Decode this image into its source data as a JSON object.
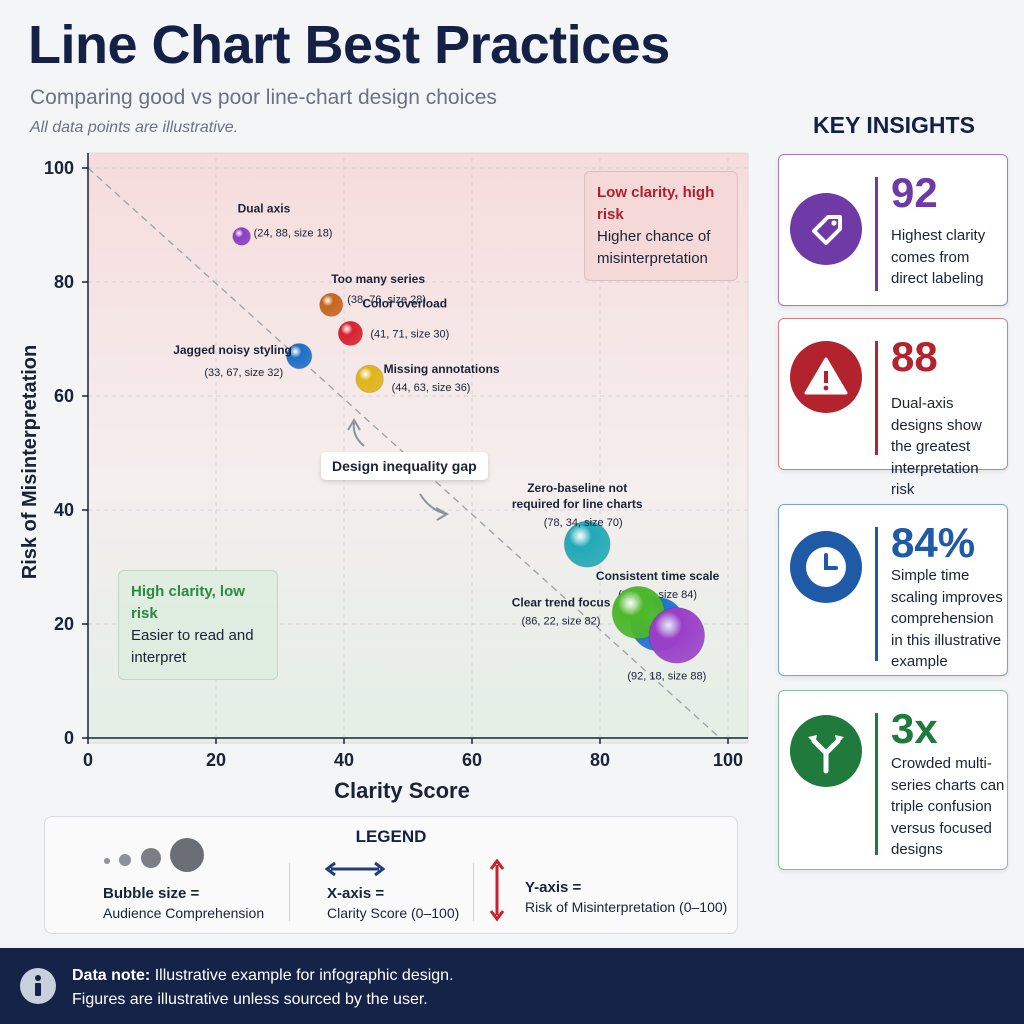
{
  "header": {
    "title": "Line Chart Best Practices",
    "subtitle": "Comparing good vs poor line-chart design choices",
    "note": "All data points are illustrative."
  },
  "chart_data": {
    "type": "scatter",
    "xlabel": "Clarity Score",
    "ylabel": "Risk of Misinterpretation",
    "xlim": [
      0,
      100
    ],
    "ylim": [
      0,
      100
    ],
    "xticks": [
      0,
      20,
      40,
      60,
      80,
      100
    ],
    "yticks": [
      0,
      20,
      40,
      60,
      80,
      100
    ],
    "grid": true,
    "points": [
      {
        "label": "Dual axis",
        "coords": "(24, 88, size 18)",
        "x": 24,
        "y": 88,
        "size": 18,
        "color": "#8b3fc4"
      },
      {
        "label": "Too many series",
        "coords": "(38, 76, size 28)",
        "x": 38,
        "y": 76,
        "size": 28,
        "color": "#c8641e"
      },
      {
        "label": "Color overload",
        "coords": "(41, 71, size 30)",
        "x": 41,
        "y": 71,
        "size": 30,
        "color": "#d92030"
      },
      {
        "label": "Jagged noisy styling",
        "coords": "(33, 67, size 32)",
        "x": 33,
        "y": 67,
        "size": 32,
        "color": "#1f6fc8"
      },
      {
        "label": "Missing annotations",
        "coords": "(44, 63, size 36)",
        "x": 44,
        "y": 63,
        "size": 36,
        "color": "#e0b418"
      },
      {
        "label": "Zero-baseline not required for line charts",
        "coords": "(78, 34, size 70)",
        "x": 78,
        "y": 34,
        "size": 70,
        "color": "#22a9b8"
      },
      {
        "label": "Consistent time scale",
        "coords": "(89, 20, size 84)",
        "x": 89,
        "y": 20,
        "size": 84,
        "color": "#1f72d0"
      },
      {
        "label": "Clear trend focus",
        "coords": "(86, 22, size 82)",
        "x": 86,
        "y": 22,
        "size": 82,
        "color": "#4cb82a"
      },
      {
        "label": "",
        "coords": "(92, 18, size 88)",
        "x": 92,
        "y": 18,
        "size": 88,
        "color": "#9a3fc8"
      }
    ],
    "annotations": {
      "gap": "Design inequality gap",
      "low_clarity_title": "Low clarity, high risk",
      "low_clarity_body": "Higher chance of misinterpretation",
      "high_clarity_title": "High clarity, low risk",
      "high_clarity_body": "Easier to read and interpret"
    }
  },
  "insights": {
    "heading": "KEY INSIGHTS",
    "cards": [
      {
        "value": "92",
        "text": "Highest clarity comes from direct labeling",
        "icon": "tag-icon",
        "color": "#6f3aa6"
      },
      {
        "value": "88",
        "text": "Dual-axis designs show the greatest interpretation risk",
        "icon": "warning-icon",
        "color": "#b3232e"
      },
      {
        "value": "84%",
        "text": "Simple time scaling improves comprehension in this illustrative example",
        "icon": "clock-icon",
        "color": "#1f5aa6"
      },
      {
        "value": "3x",
        "text": "Crowded multi-series charts can triple confusion versus focused designs",
        "icon": "split-arrow-icon",
        "color": "#1f7a3c"
      }
    ]
  },
  "legend": {
    "title": "LEGEND",
    "size_title": "Bubble size =",
    "size_desc": "Audience Comprehension",
    "x_title": "X-axis =",
    "x_desc": "Clarity Score (0–100)",
    "y_title": "Y-axis =",
    "y_desc": "Risk of Misinterpretation (0–100)"
  },
  "footer": {
    "label": "Data note:",
    "line1": "Illustrative example for infographic design.",
    "line2": "Figures are illustrative unless sourced by the user."
  }
}
